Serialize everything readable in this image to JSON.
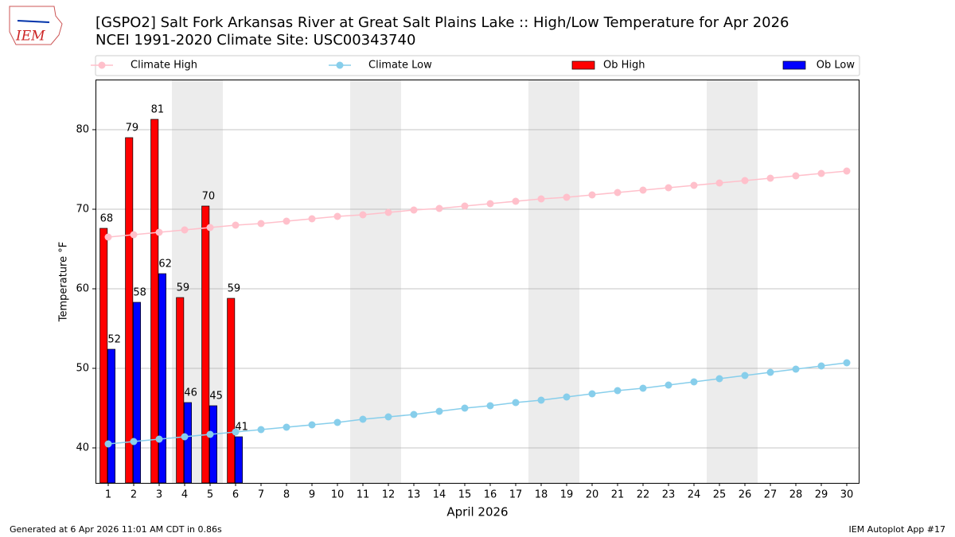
{
  "chart_data": {
    "type": "bar_line",
    "title": "[GSPO2] Salt Fork Arkansas River at Great Salt Plains Lake :: High/Low Temperature for Apr 2026",
    "subtitle": "NCEI 1991-2020 Climate Site: USC00343740",
    "logo_text": "IEM",
    "ylabel": "Temperature °F",
    "xlabel": "April 2026",
    "footer_left": "Generated at 6 Apr 2026 11:01 AM CDT in 0.86s",
    "footer_right": "IEM Autoplot App #17",
    "xlim": [
      0.5,
      30.5
    ],
    "xticks": [
      1,
      2,
      3,
      4,
      5,
      6,
      7,
      8,
      9,
      10,
      11,
      12,
      13,
      14,
      15,
      16,
      17,
      18,
      19,
      20,
      21,
      22,
      23,
      24,
      25,
      26,
      27,
      28,
      29,
      30
    ],
    "ylim": [
      35.6,
      86.3
    ],
    "yticks": [
      40,
      50,
      60,
      70,
      80
    ],
    "grid": true,
    "highlight_days": [
      4,
      5,
      11,
      12,
      18,
      19,
      25,
      26
    ],
    "highlight_color": "#ececec",
    "series": [
      {
        "name": "Climate High",
        "type": "line",
        "color": "#ffc0cb",
        "x": [
          1,
          2,
          3,
          4,
          5,
          6,
          7,
          8,
          9,
          10,
          11,
          12,
          13,
          14,
          15,
          16,
          17,
          18,
          19,
          20,
          21,
          22,
          23,
          24,
          25,
          26,
          27,
          28,
          29,
          30
        ],
        "values": [
          66.5,
          66.8,
          67.1,
          67.4,
          67.7,
          68.0,
          68.2,
          68.5,
          68.8,
          69.1,
          69.3,
          69.6,
          69.9,
          70.1,
          70.4,
          70.7,
          71.0,
          71.3,
          71.5,
          71.8,
          72.1,
          72.4,
          72.7,
          73.0,
          73.3,
          73.6,
          73.9,
          74.2,
          74.5,
          74.8
        ]
      },
      {
        "name": "Climate Low",
        "type": "line",
        "color": "#87ceeb",
        "x": [
          1,
          2,
          3,
          4,
          5,
          6,
          7,
          8,
          9,
          10,
          11,
          12,
          13,
          14,
          15,
          16,
          17,
          18,
          19,
          20,
          21,
          22,
          23,
          24,
          25,
          26,
          27,
          28,
          29,
          30
        ],
        "values": [
          40.5,
          40.8,
          41.1,
          41.4,
          41.7,
          42.0,
          42.3,
          42.6,
          42.9,
          43.2,
          43.6,
          43.9,
          44.2,
          44.6,
          45.0,
          45.3,
          45.7,
          46.0,
          46.4,
          46.8,
          47.2,
          47.5,
          47.9,
          48.3,
          48.7,
          49.1,
          49.5,
          49.9,
          50.3,
          50.7
        ]
      },
      {
        "name": "Ob High",
        "type": "bar",
        "color": "#ff0000",
        "x": [
          1,
          2,
          3,
          4,
          5,
          6
        ],
        "values": [
          67.6,
          79.0,
          81.3,
          58.9,
          70.4,
          58.8
        ],
        "value_labels": [
          "68",
          "79",
          "81",
          "59",
          "70",
          "59"
        ]
      },
      {
        "name": "Ob Low",
        "type": "bar",
        "color": "#0000ff",
        "x": [
          1,
          2,
          3,
          4,
          5,
          6
        ],
        "values": [
          52.4,
          58.3,
          61.9,
          45.7,
          45.3,
          41.4
        ],
        "value_labels": [
          "52",
          "58",
          "62",
          "46",
          "45",
          "41"
        ]
      }
    ]
  }
}
